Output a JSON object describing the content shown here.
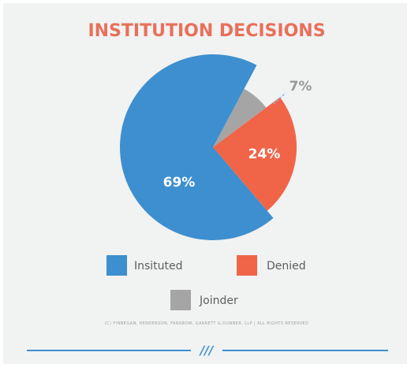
{
  "colors": {
    "title": "#e8705a",
    "instituted": "#3d8fcf",
    "denied": "#f06548",
    "joinder": "#a5a5a5",
    "divider": "#3d8fcf",
    "background": "#f1f2f2"
  },
  "copyright": "(C) FINNEGAN, HENDERSON, FARABOW, GARRETT & DUNNER, LLP | ALL RIGHTS RESERVED",
  "logo": "///",
  "chart_data": {
    "type": "pie",
    "title": "INSTITUTION DECISIONS",
    "slices": [
      {
        "name": "Insituted",
        "value": 69,
        "label": "69%",
        "color": "#3d8fcf",
        "label_position": "inside"
      },
      {
        "name": "Denied",
        "value": 24,
        "label": "24%",
        "color": "#f06548",
        "label_position": "inside"
      },
      {
        "name": "Joinder",
        "value": 7,
        "label": "7%",
        "color": "#a5a5a5",
        "label_position": "outside"
      }
    ],
    "legend": {
      "placement": "bottom",
      "entries": [
        "Insituted",
        "Denied",
        "Joinder"
      ]
    }
  }
}
